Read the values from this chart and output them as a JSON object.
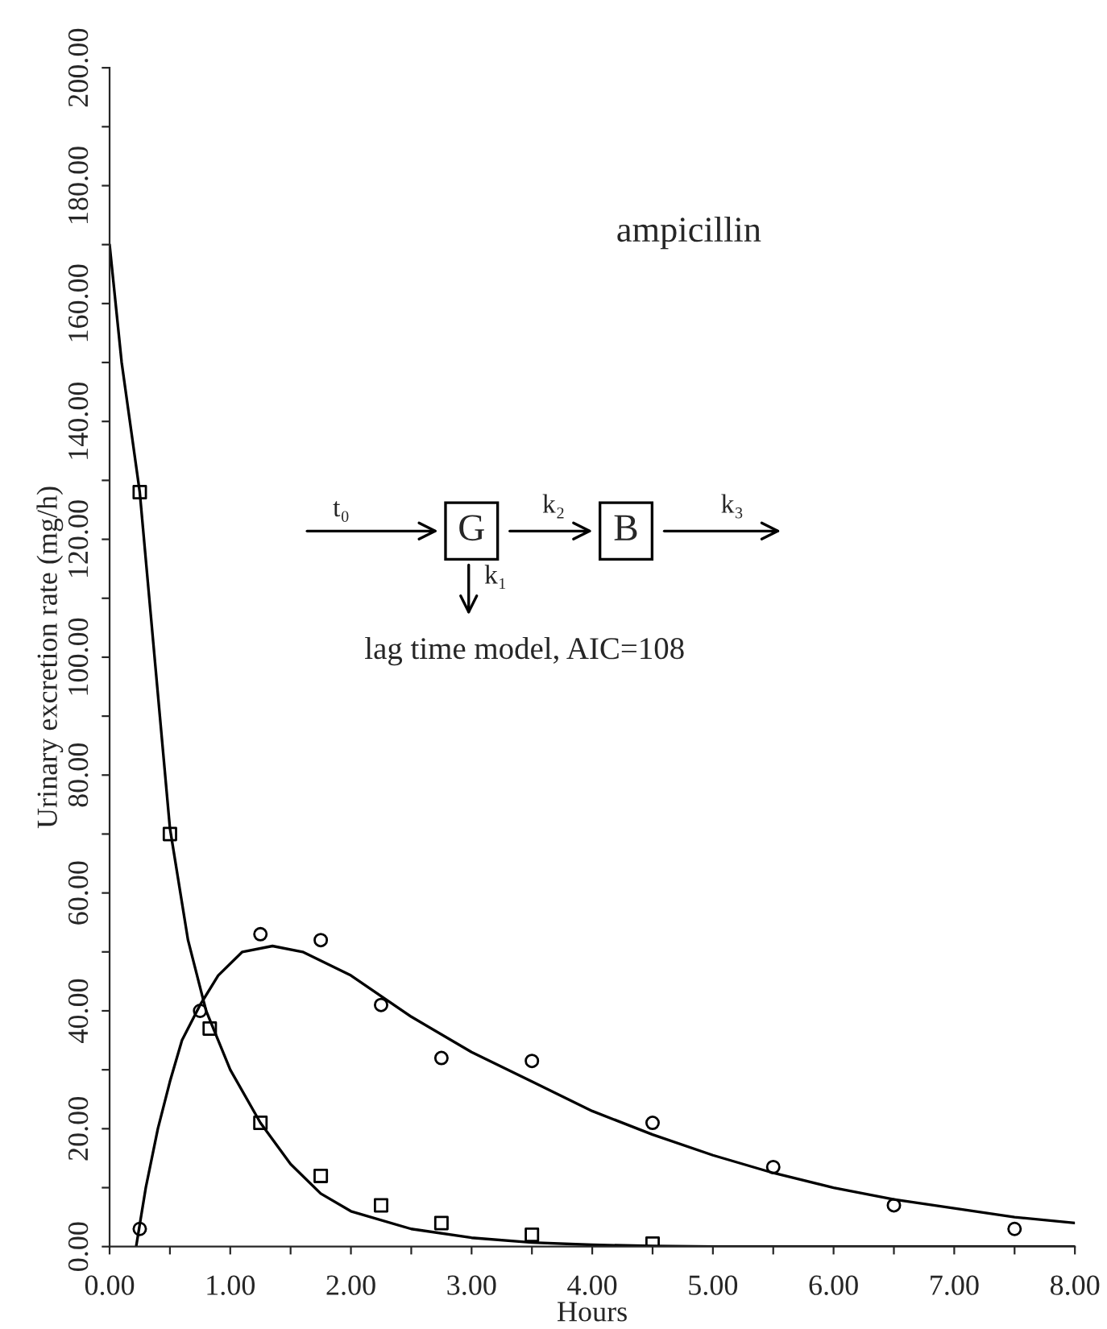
{
  "chart_data": {
    "type": "scatter",
    "xlabel": "Hours",
    "ylabel": "Urinary excretion rate (mg/h)",
    "xlim": [
      0,
      8
    ],
    "ylim": [
      0,
      200
    ],
    "xticks": [
      {
        "value": 0,
        "label": "0.00"
      },
      {
        "value": 0.5,
        "label": null
      },
      {
        "value": 1,
        "label": "1.00"
      },
      {
        "value": 1.5,
        "label": null
      },
      {
        "value": 2,
        "label": "2.00"
      },
      {
        "value": 2.5,
        "label": null
      },
      {
        "value": 3,
        "label": "3.00"
      },
      {
        "value": 3.5,
        "label": null
      },
      {
        "value": 4,
        "label": "4.00"
      },
      {
        "value": 4.5,
        "label": null
      },
      {
        "value": 5,
        "label": "5.00"
      },
      {
        "value": 5.5,
        "label": null
      },
      {
        "value": 6,
        "label": "6.00"
      },
      {
        "value": 6.5,
        "label": null
      },
      {
        "value": 7,
        "label": "7.00"
      },
      {
        "value": 7.5,
        "label": null
      },
      {
        "value": 8,
        "label": "8.00"
      }
    ],
    "yticks": [
      {
        "value": 0,
        "label": "0.00"
      },
      {
        "value": 10,
        "label": null
      },
      {
        "value": 20,
        "label": "20.00"
      },
      {
        "value": 30,
        "label": null
      },
      {
        "value": 40,
        "label": "40.00"
      },
      {
        "value": 50,
        "label": null
      },
      {
        "value": 60,
        "label": "60.00"
      },
      {
        "value": 70,
        "label": null
      },
      {
        "value": 80,
        "label": "80.00"
      },
      {
        "value": 90,
        "label": null
      },
      {
        "value": 100,
        "label": "100.00"
      },
      {
        "value": 110,
        "label": null
      },
      {
        "value": 120,
        "label": "120.00"
      },
      {
        "value": 130,
        "label": null
      },
      {
        "value": 140,
        "label": "140.00"
      },
      {
        "value": 150,
        "label": null
      },
      {
        "value": 160,
        "label": "160.00"
      },
      {
        "value": 170,
        "label": null
      },
      {
        "value": 180,
        "label": "180.00"
      },
      {
        "value": 190,
        "label": null
      },
      {
        "value": 200,
        "label": "200.00"
      }
    ],
    "grid": false,
    "legend": false,
    "series": [
      {
        "marker": "square",
        "color": "#000000",
        "x": [
          0.25,
          0.5,
          0.83,
          1.25,
          1.75,
          2.25,
          2.75,
          3.5,
          4.5
        ],
        "values": [
          128,
          70,
          37,
          21,
          12,
          7,
          4,
          2,
          0.5
        ]
      },
      {
        "marker": "circle",
        "color": "#000000",
        "x": [
          0.25,
          0.75,
          1.25,
          1.75,
          2.25,
          2.75,
          3.5,
          4.5,
          5.5,
          6.5,
          7.5
        ],
        "values": [
          3,
          40,
          53,
          52,
          41,
          32,
          31.5,
          21,
          13.5,
          7,
          3
        ]
      },
      {
        "type": "line",
        "marker": "none",
        "line_style": "solid",
        "color": "#000000",
        "x": [
          0,
          0.1,
          0.25,
          0.5,
          0.65,
          0.8,
          1.0,
          1.25,
          1.5,
          1.75,
          2,
          2.5,
          3,
          3.5,
          4,
          4.5,
          5,
          6,
          8
        ],
        "values": [
          170,
          150,
          128,
          71,
          52,
          40,
          30,
          21,
          14,
          9,
          6,
          3,
          1.5,
          0.7,
          0.3,
          0.1,
          0,
          0,
          0
        ]
      },
      {
        "type": "line",
        "marker": "none",
        "line_style": "solid",
        "color": "#000000",
        "x": [
          0.22,
          0.3,
          0.4,
          0.5,
          0.6,
          0.75,
          0.9,
          1.1,
          1.35,
          1.6,
          2.0,
          2.5,
          3.0,
          3.5,
          4.0,
          4.5,
          5.0,
          5.5,
          6.0,
          6.5,
          7.0,
          7.5,
          8.0
        ],
        "values": [
          0,
          10,
          20,
          28,
          35,
          41,
          46,
          50,
          51,
          50,
          46,
          39,
          33,
          28,
          23,
          19,
          15.5,
          12.5,
          10,
          8,
          6.5,
          5,
          4
        ]
      }
    ],
    "annotations": [
      "ampicillin",
      "t₀",
      "G",
      "k₂",
      "B",
      "k₃",
      "k₁",
      "lag time model, AIC=108"
    ]
  }
}
